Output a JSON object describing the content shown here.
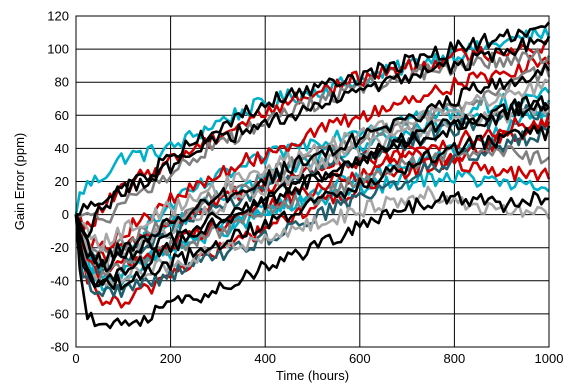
{
  "chart_data": {
    "type": "line",
    "title": "",
    "xlabel": "Time (hours)",
    "ylabel": "Gain Error (ppm)",
    "xlim": [
      0,
      1000
    ],
    "ylim": [
      -80,
      120
    ],
    "x_ticks": [
      0,
      200,
      400,
      600,
      800,
      1000
    ],
    "y_ticks": [
      -80,
      -60,
      -40,
      -20,
      0,
      20,
      40,
      60,
      80,
      100,
      120
    ],
    "x_tick_labels": [
      "0",
      "200",
      "400",
      "600",
      "800",
      "1000"
    ],
    "y_tick_labels": [
      "-80",
      "-60",
      "-40",
      "-20",
      "0",
      "20",
      "40",
      "60",
      "80",
      "100",
      "120"
    ],
    "grid": true,
    "legend": "none",
    "x": [
      0,
      10,
      25,
      50,
      100,
      150,
      200,
      250,
      300,
      350,
      400,
      450,
      500,
      550,
      600,
      650,
      700,
      750,
      800,
      850,
      900,
      950,
      1000
    ],
    "series": [
      {
        "color": "#00B0C8",
        "values": [
          0,
          14,
          18,
          22,
          35,
          37,
          40,
          48,
          56,
          62,
          67,
          71,
          74,
          78,
          82,
          85,
          90,
          94,
          97,
          100,
          104,
          107,
          110
        ]
      },
      {
        "color": "#00B0C8",
        "values": [
          0,
          -20,
          -35,
          -42,
          -35,
          -28,
          -20,
          -14,
          -8,
          -3,
          3,
          8,
          14,
          18,
          22,
          26,
          30,
          34,
          38,
          44,
          50,
          58,
          65
        ]
      },
      {
        "color": "#00B0C8",
        "values": [
          0,
          -10,
          -25,
          -35,
          -20,
          -8,
          5,
          15,
          22,
          28,
          34,
          40,
          44,
          48,
          52,
          55,
          58,
          60,
          62,
          65,
          68,
          70,
          72
        ]
      },
      {
        "color": "#00B0C8",
        "values": [
          0,
          -18,
          -30,
          -40,
          -38,
          -30,
          -22,
          -16,
          -10,
          -5,
          0,
          4,
          8,
          12,
          15,
          18,
          20,
          22,
          23,
          21,
          19,
          17,
          15
        ]
      },
      {
        "color": "#00B0C8",
        "values": [
          0,
          -10,
          -20,
          -30,
          -22,
          -15,
          -6,
          2,
          10,
          16,
          22,
          28,
          33,
          37,
          41,
          45,
          49,
          52,
          55,
          58,
          60,
          62,
          63
        ]
      },
      {
        "color": "#CC0000",
        "values": [
          0,
          -5,
          -8,
          2,
          15,
          25,
          33,
          40,
          48,
          55,
          62,
          68,
          73,
          78,
          82,
          86,
          89,
          92,
          95,
          97,
          99,
          101,
          102
        ]
      },
      {
        "color": "#CC0000",
        "values": [
          0,
          -25,
          -40,
          -50,
          -55,
          -45,
          -35,
          -28,
          -22,
          -15,
          -8,
          -2,
          5,
          10,
          15,
          20,
          25,
          30,
          35,
          40,
          45,
          50,
          55
        ]
      },
      {
        "color": "#CC0000",
        "values": [
          0,
          -12,
          -22,
          -28,
          -20,
          -12,
          -5,
          2,
          8,
          14,
          18,
          22,
          26,
          30,
          33,
          36,
          38,
          36,
          30,
          27,
          25,
          24,
          23
        ]
      },
      {
        "color": "#CC0000",
        "values": [
          0,
          -8,
          -15,
          -20,
          -10,
          -2,
          8,
          16,
          24,
          31,
          37,
          43,
          49,
          54,
          59,
          64,
          69,
          74,
          78,
          82,
          86,
          90,
          95
        ]
      },
      {
        "color": "#CC0000",
        "values": [
          0,
          -15,
          -28,
          -35,
          -30,
          -24,
          -18,
          -12,
          -6,
          0,
          5,
          10,
          15,
          20,
          25,
          30,
          35,
          40,
          44,
          48,
          52,
          55,
          58
        ]
      },
      {
        "color": "#1F5F6E",
        "values": [
          0,
          -30,
          -42,
          -48,
          -45,
          -40,
          -36,
          -30,
          -25,
          -20,
          -14,
          -8,
          -2,
          4,
          10,
          16,
          22,
          28,
          34,
          38,
          42,
          46,
          50
        ]
      },
      {
        "color": "#1F5F6E",
        "values": [
          0,
          -15,
          -25,
          -32,
          -25,
          -18,
          -10,
          -3,
          4,
          10,
          16,
          22,
          27,
          32,
          36,
          40,
          44,
          48,
          52,
          55,
          58,
          61,
          63
        ]
      },
      {
        "color": "#808080",
        "values": [
          0,
          -10,
          -18,
          -25,
          -18,
          -10,
          -2,
          5,
          12,
          18,
          24,
          30,
          35,
          40,
          45,
          50,
          55,
          60,
          65,
          70,
          76,
          82,
          88
        ]
      },
      {
        "color": "#808080",
        "values": [
          0,
          -20,
          -30,
          -38,
          -32,
          -26,
          -20,
          -15,
          -10,
          -5,
          0,
          5,
          10,
          15,
          20,
          25,
          30,
          35,
          38,
          40,
          38,
          35,
          32
        ]
      },
      {
        "color": "#808080",
        "values": [
          0,
          2,
          0,
          -5,
          5,
          15,
          25,
          35,
          42,
          50,
          56,
          62,
          67,
          72,
          76,
          80,
          84,
          87,
          90,
          92,
          94,
          95,
          96
        ]
      },
      {
        "color": "#A6A6A6",
        "values": [
          0,
          -18,
          -32,
          -40,
          -38,
          -34,
          -30,
          -26,
          -22,
          -18,
          -14,
          -10,
          -6,
          -2,
          2,
          6,
          10,
          12,
          10,
          6,
          3,
          1,
          0
        ]
      },
      {
        "color": "#A6A6A6",
        "values": [
          0,
          -12,
          -22,
          -30,
          -22,
          -15,
          -8,
          -1,
          5,
          11,
          17,
          23,
          29,
          34,
          39,
          44,
          48,
          52,
          55,
          58,
          60,
          62,
          63
        ]
      },
      {
        "color": "#A6A6A6",
        "values": [
          0,
          -5,
          -12,
          -18,
          -10,
          -3,
          4,
          10,
          16,
          22,
          28,
          33,
          38,
          43,
          47,
          52,
          56,
          60,
          64,
          68,
          72,
          75,
          78
        ]
      },
      {
        "color": "#000000",
        "values": [
          0,
          -40,
          -62,
          -70,
          -66,
          -62,
          -56,
          -50,
          -44,
          -38,
          -32,
          -26,
          -20,
          -14,
          -8,
          -2,
          4,
          8,
          10,
          8,
          6,
          8,
          10
        ]
      },
      {
        "color": "#000000",
        "values": [
          0,
          -20,
          -35,
          -42,
          -36,
          -28,
          -20,
          -12,
          -5,
          2,
          8,
          14,
          20,
          26,
          32,
          38,
          44,
          48,
          52,
          56,
          60,
          64,
          68
        ]
      },
      {
        "color": "#000000",
        "values": [
          0,
          -5,
          -10,
          2,
          14,
          24,
          34,
          44,
          52,
          60,
          66,
          72,
          76,
          80,
          84,
          88,
          92,
          96,
          100,
          104,
          107,
          110,
          112
        ]
      },
      {
        "color": "#000000",
        "values": [
          0,
          0,
          4,
          8,
          14,
          22,
          30,
          38,
          44,
          50,
          55,
          60,
          65,
          70,
          74,
          78,
          82,
          86,
          90,
          94,
          98,
          102,
          106
        ]
      },
      {
        "color": "#000000",
        "values": [
          0,
          -10,
          -20,
          -28,
          -20,
          -12,
          -4,
          4,
          10,
          16,
          22,
          28,
          34,
          40,
          46,
          52,
          58,
          64,
          70,
          76,
          80,
          84,
          88
        ]
      },
      {
        "color": "#000000",
        "values": [
          0,
          -15,
          -25,
          -32,
          -26,
          -20,
          -14,
          -8,
          -2,
          4,
          10,
          16,
          22,
          28,
          34,
          40,
          46,
          52,
          56,
          60,
          63,
          66,
          68
        ]
      },
      {
        "color": "#000000",
        "values": [
          0,
          -25,
          -38,
          -45,
          -40,
          -35,
          -30,
          -24,
          -18,
          -12,
          -6,
          0,
          6,
          12,
          18,
          24,
          30,
          36,
          40,
          44,
          46,
          48,
          50
        ]
      }
    ]
  }
}
